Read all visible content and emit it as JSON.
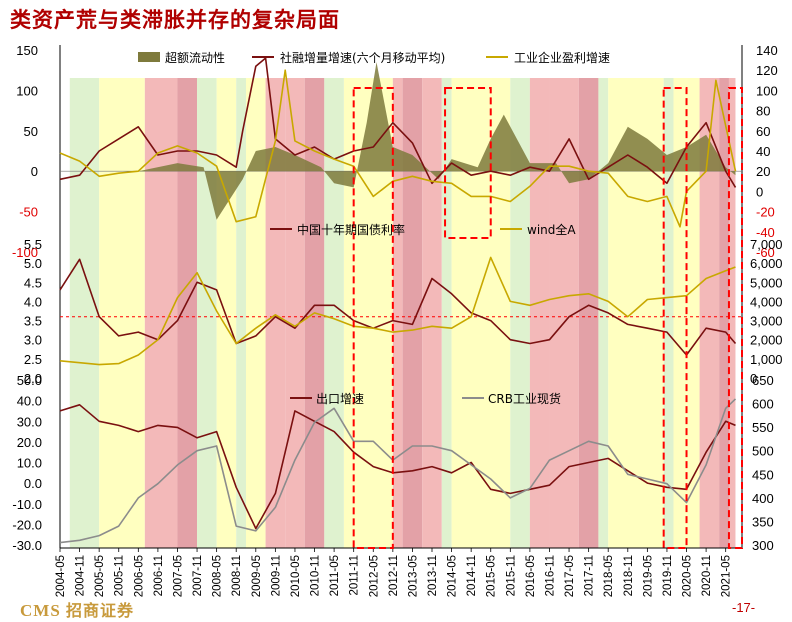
{
  "title": "类资产荒与类滞胀并存的复杂局面",
  "footer": {
    "logo_en": "CMS",
    "logo_cn": "招商证券",
    "page": "-17-"
  },
  "colors": {
    "green_band": "#dff2cf",
    "yellow_band": "#ffffc0",
    "red_band": "#f3b9b9",
    "darkred_band": "#e3a1a7",
    "line_darkred": "#7a1010",
    "line_gold": "#c8a800",
    "line_gray": "#8c8c8c",
    "area_olive": "#7e7a3c",
    "dash_red": "#ff0000"
  },
  "chart_data": [
    {
      "type": "line",
      "panel": "top",
      "series": [
        {
          "name": "超额流动性",
          "kind": "area",
          "x": [
            "2004-05",
            "2005-05",
            "2006-05",
            "2007-05",
            "2008-01",
            "2008-05",
            "2009-01",
            "2009-05",
            "2009-11",
            "2010-05",
            "2011-01",
            "2011-05",
            "2011-11",
            "2012-03",
            "2012-06",
            "2012-11",
            "2013-05",
            "2014-01",
            "2014-05",
            "2015-01",
            "2015-05",
            "2015-09",
            "2016-05",
            "2017-01",
            "2017-05",
            "2017-11",
            "2018-05",
            "2018-11",
            "2019-05",
            "2019-11",
            "2020-05",
            "2020-11",
            "2021-05",
            "2021-08"
          ],
          "values": [
            0,
            0,
            0,
            10,
            5,
            -60,
            -10,
            25,
            30,
            20,
            5,
            -15,
            -20,
            60,
            135,
            30,
            20,
            -10,
            15,
            5,
            40,
            70,
            10,
            10,
            -15,
            -10,
            10,
            55,
            40,
            20,
            30,
            45,
            5,
            -5
          ]
        },
        {
          "name": "社融增量增速(六个月移动平均)",
          "kind": "line",
          "x": [
            "2004-05",
            "2004-11",
            "2005-05",
            "2005-11",
            "2006-05",
            "2006-11",
            "2007-05",
            "2007-11",
            "2008-05",
            "2008-11",
            "2009-01",
            "2009-05",
            "2009-08",
            "2009-11",
            "2010-05",
            "2010-11",
            "2011-05",
            "2011-11",
            "2012-05",
            "2012-11",
            "2013-05",
            "2013-11",
            "2014-05",
            "2014-11",
            "2015-05",
            "2015-11",
            "2016-05",
            "2016-11",
            "2017-05",
            "2017-11",
            "2018-05",
            "2018-11",
            "2019-05",
            "2019-11",
            "2020-05",
            "2020-11",
            "2021-05",
            "2021-08"
          ],
          "values": [
            -10,
            -5,
            25,
            40,
            55,
            20,
            25,
            25,
            20,
            5,
            50,
            130,
            140,
            40,
            20,
            30,
            15,
            25,
            30,
            60,
            35,
            -15,
            10,
            -5,
            0,
            -5,
            5,
            0,
            40,
            -10,
            5,
            20,
            5,
            -15,
            30,
            60,
            0,
            -20
          ]
        },
        {
          "name": "工业企业盈利增速",
          "x": [
            "2004-05",
            "2004-11",
            "2005-05",
            "2005-11",
            "2006-05",
            "2006-11",
            "2007-05",
            "2007-11",
            "2008-05",
            "2008-11",
            "2009-05",
            "2009-11",
            "2010-02",
            "2010-05",
            "2010-11",
            "2011-05",
            "2011-11",
            "2012-05",
            "2012-11",
            "2013-05",
            "2013-11",
            "2014-05",
            "2014-11",
            "2015-05",
            "2015-11",
            "2016-05",
            "2016-11",
            "2017-05",
            "2017-11",
            "2018-05",
            "2018-11",
            "2019-05",
            "2019-11",
            "2020-03",
            "2020-05",
            "2020-11",
            "2021-02",
            "2021-08"
          ],
          "values": [
            38,
            30,
            15,
            18,
            20,
            38,
            45,
            38,
            25,
            -30,
            -25,
            50,
            120,
            50,
            40,
            32,
            25,
            -5,
            10,
            15,
            10,
            8,
            -5,
            -5,
            -10,
            5,
            25,
            25,
            20,
            18,
            -5,
            -10,
            -5,
            -35,
            0,
            20,
            110,
            20
          ]
        }
      ],
      "y_left_ticks": [
        "150",
        "100",
        "50",
        "0",
        "-50",
        "-100"
      ],
      "y_right_ticks": [
        "140",
        "120",
        "100",
        "80",
        "60",
        "40",
        "20",
        "0",
        "-20",
        "-40",
        "-60"
      ]
    },
    {
      "type": "line",
      "panel": "middle",
      "series": [
        {
          "name": "中国十年期国债利率",
          "x": [
            "2004-05",
            "2004-11",
            "2005-05",
            "2005-11",
            "2006-05",
            "2006-11",
            "2007-05",
            "2007-11",
            "2008-05",
            "2008-11",
            "2009-05",
            "2009-11",
            "2010-05",
            "2010-11",
            "2011-05",
            "2011-11",
            "2012-05",
            "2012-11",
            "2013-05",
            "2013-11",
            "2014-05",
            "2014-11",
            "2015-05",
            "2015-11",
            "2016-05",
            "2016-11",
            "2017-05",
            "2017-11",
            "2018-05",
            "2018-11",
            "2019-05",
            "2019-11",
            "2020-05",
            "2020-11",
            "2021-05",
            "2021-08"
          ],
          "values": [
            4.3,
            5.1,
            3.6,
            3.1,
            3.2,
            3.0,
            3.5,
            4.5,
            4.3,
            2.9,
            3.1,
            3.6,
            3.3,
            3.9,
            3.9,
            3.5,
            3.3,
            3.5,
            3.4,
            4.6,
            4.2,
            3.7,
            3.5,
            3.0,
            2.9,
            3.0,
            3.6,
            3.9,
            3.7,
            3.4,
            3.3,
            3.2,
            2.6,
            3.3,
            3.2,
            2.9
          ]
        },
        {
          "name": "wind全A",
          "x": [
            "2004-05",
            "2004-11",
            "2005-05",
            "2005-11",
            "2006-05",
            "2006-11",
            "2007-05",
            "2007-11",
            "2008-05",
            "2008-11",
            "2009-05",
            "2009-11",
            "2010-05",
            "2010-11",
            "2011-05",
            "2011-11",
            "2012-05",
            "2012-11",
            "2013-05",
            "2013-11",
            "2014-05",
            "2014-11",
            "2015-05",
            "2015-11",
            "2016-05",
            "2016-11",
            "2017-05",
            "2017-11",
            "2018-05",
            "2018-11",
            "2019-05",
            "2019-11",
            "2020-05",
            "2020-11",
            "2021-05",
            "2021-08"
          ],
          "values": [
            900,
            800,
            700,
            750,
            1200,
            2000,
            4200,
            5500,
            3500,
            1800,
            2600,
            3300,
            2700,
            3400,
            3100,
            2700,
            2600,
            2400,
            2500,
            2700,
            2600,
            3200,
            6300,
            4000,
            3800,
            4100,
            4300,
            4400,
            4000,
            3200,
            4100,
            4200,
            4300,
            5200,
            5600,
            5800
          ]
        }
      ],
      "y_left_ticks": [
        "5.5",
        "5.0",
        "4.5",
        "4.0",
        "3.5",
        "3.0",
        "2.5",
        "2.0"
      ],
      "y_right_ticks": [
        "7,000",
        "6,000",
        "5,000",
        "4,000",
        "3,000",
        "2,000",
        "1,000",
        "0"
      ]
    },
    {
      "type": "line",
      "panel": "bottom",
      "series": [
        {
          "name": "出口增速",
          "x": [
            "2004-05",
            "2004-11",
            "2005-05",
            "2005-11",
            "2006-05",
            "2006-11",
            "2007-05",
            "2007-11",
            "2008-05",
            "2008-11",
            "2009-05",
            "2009-11",
            "2010-05",
            "2010-11",
            "2011-05",
            "2011-11",
            "2012-05",
            "2012-11",
            "2013-05",
            "2013-11",
            "2014-05",
            "2014-11",
            "2015-05",
            "2015-11",
            "2016-05",
            "2016-11",
            "2017-05",
            "2017-11",
            "2018-05",
            "2018-11",
            "2019-05",
            "2019-11",
            "2020-05",
            "2020-11",
            "2021-05",
            "2021-08"
          ],
          "values": [
            35,
            38,
            30,
            28,
            25,
            28,
            27,
            22,
            25,
            -2,
            -22,
            -5,
            35,
            30,
            25,
            15,
            8,
            5,
            6,
            8,
            5,
            10,
            -3,
            -5,
            -3,
            -1,
            8,
            10,
            12,
            6,
            0,
            -2,
            -3,
            15,
            30,
            28
          ]
        },
        {
          "name": "CRB工业现货",
          "x": [
            "2004-05",
            "2004-11",
            "2005-05",
            "2005-11",
            "2006-05",
            "2006-11",
            "2007-05",
            "2007-11",
            "2008-05",
            "2008-11",
            "2009-05",
            "2009-11",
            "2010-05",
            "2010-11",
            "2011-05",
            "2011-11",
            "2012-05",
            "2012-11",
            "2013-05",
            "2013-11",
            "2014-05",
            "2014-11",
            "2015-05",
            "2015-11",
            "2016-05",
            "2016-11",
            "2017-05",
            "2017-11",
            "2018-05",
            "2018-11",
            "2019-05",
            "2019-11",
            "2020-05",
            "2020-11",
            "2021-05",
            "2021-08"
          ],
          "values": [
            305,
            310,
            320,
            340,
            400,
            430,
            470,
            500,
            510,
            340,
            330,
            380,
            480,
            560,
            590,
            520,
            520,
            480,
            510,
            510,
            500,
            470,
            440,
            400,
            420,
            480,
            500,
            520,
            510,
            450,
            440,
            430,
            390,
            470,
            590,
            610
          ]
        }
      ],
      "y_left_ticks": [
        "50.0",
        "40.0",
        "30.0",
        "20.0",
        "10.0",
        "0.0",
        "-10.0",
        "-20.0",
        "-30.0"
      ],
      "y_right_ticks": [
        "650",
        "600",
        "550",
        "500",
        "450",
        "400",
        "350",
        "300"
      ]
    }
  ],
  "x_ticks": [
    "2004-05",
    "2004-11",
    "2005-05",
    "2005-11",
    "2006-05",
    "2006-11",
    "2007-05",
    "2007-11",
    "2008-05",
    "2008-11",
    "2009-05",
    "2009-11",
    "2010-05",
    "2010-11",
    "2011-05",
    "2011-11",
    "2012-05",
    "2012-11",
    "2013-05",
    "2013-11",
    "2014-05",
    "2014-11",
    "2015-05",
    "2015-11",
    "2016-05",
    "2016-11",
    "2017-05",
    "2017-11",
    "2018-05",
    "2018-11",
    "2019-05",
    "2019-11",
    "2020-05",
    "2020-11",
    "2021-05"
  ],
  "bands": [
    {
      "from": "2004-08",
      "to": "2005-05",
      "color": "green"
    },
    {
      "from": "2005-05",
      "to": "2006-07",
      "color": "yellow"
    },
    {
      "from": "2006-07",
      "to": "2007-05",
      "color": "red"
    },
    {
      "from": "2007-05",
      "to": "2007-11",
      "color": "darkred"
    },
    {
      "from": "2007-11",
      "to": "2008-05",
      "color": "green"
    },
    {
      "from": "2008-05",
      "to": "2008-11",
      "color": "yellow"
    },
    {
      "from": "2008-11",
      "to": "2009-02",
      "color": "green"
    },
    {
      "from": "2009-02",
      "to": "2009-08",
      "color": "yellow"
    },
    {
      "from": "2009-08",
      "to": "2010-02",
      "color": "red"
    },
    {
      "from": "2010-02",
      "to": "2010-08",
      "color": "red"
    },
    {
      "from": "2010-08",
      "to": "2011-02",
      "color": "darkred"
    },
    {
      "from": "2011-02",
      "to": "2011-08",
      "color": "green"
    },
    {
      "from": "2011-08",
      "to": "2012-11",
      "color": "yellow"
    },
    {
      "from": "2012-11",
      "to": "2013-02",
      "color": "red"
    },
    {
      "from": "2013-02",
      "to": "2013-08",
      "color": "darkred"
    },
    {
      "from": "2013-08",
      "to": "2014-02",
      "color": "red"
    },
    {
      "from": "2014-02",
      "to": "2014-05",
      "color": "green"
    },
    {
      "from": "2014-05",
      "to": "2015-11",
      "color": "yellow"
    },
    {
      "from": "2015-11",
      "to": "2016-05",
      "color": "green"
    },
    {
      "from": "2016-05",
      "to": "2016-11",
      "color": "red"
    },
    {
      "from": "2016-11",
      "to": "2017-08",
      "color": "red"
    },
    {
      "from": "2017-08",
      "to": "2018-02",
      "color": "darkred"
    },
    {
      "from": "2018-02",
      "to": "2018-05",
      "color": "green"
    },
    {
      "from": "2018-05",
      "to": "2019-10",
      "color": "yellow"
    },
    {
      "from": "2019-10",
      "to": "2020-01",
      "color": "green"
    },
    {
      "from": "2020-01",
      "to": "2020-09",
      "color": "yellow"
    },
    {
      "from": "2020-09",
      "to": "2021-03",
      "color": "red"
    },
    {
      "from": "2021-03",
      "to": "2021-06",
      "color": "darkred"
    },
    {
      "from": "2021-06",
      "to": "2021-08",
      "color": "red"
    }
  ],
  "dashed_boxes": [
    {
      "from": "2011-11",
      "to": "2012-11",
      "panel": "all"
    },
    {
      "from": "2014-03",
      "to": "2015-05",
      "panel": "top"
    },
    {
      "from": "2019-10",
      "to": "2020-05",
      "panel": "all"
    },
    {
      "from": "2021-06",
      "to": "2021-10",
      "panel": "all"
    }
  ],
  "ref_line_middle": 3.6
}
